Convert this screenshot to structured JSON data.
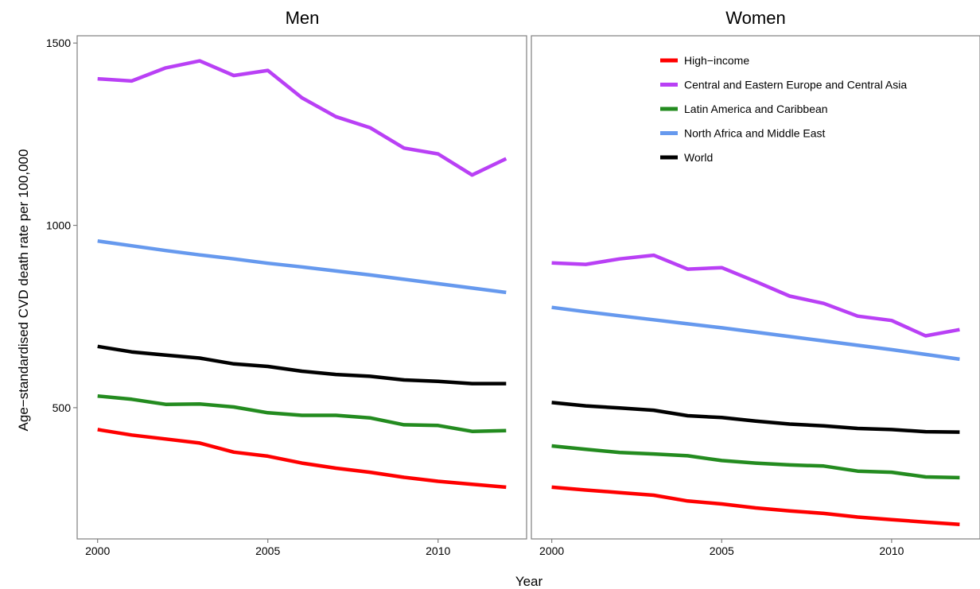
{
  "chart_data": {
    "type": "line",
    "xlabel": "Year",
    "ylabel": "Age−standardised CVD death rate per 100,000",
    "xlim": [
      1999.4,
      2012.6
    ],
    "ylim": [
      140,
      1520
    ],
    "x_ticks": [
      2000,
      2005,
      2010
    ],
    "y_ticks": [
      500,
      1000,
      1500
    ],
    "grid": false,
    "legend_position": "top-right of Women panel",
    "x": [
      2000,
      2001,
      2002,
      2003,
      2004,
      2005,
      2006,
      2007,
      2008,
      2009,
      2010,
      2011,
      2012
    ],
    "panels": [
      {
        "title": "Men",
        "series": [
          {
            "name": "High−income",
            "color": "#ff0000",
            "values": [
              440,
              425,
              414,
              403,
              378,
              367,
              348,
              334,
              323,
              309,
              298,
              290,
              282
            ]
          },
          {
            "name": "Central and Eastern Europe and Central Asia",
            "color": "#b940f5",
            "values": [
              1402,
              1396,
              1432,
              1451,
              1411,
              1425,
              1350,
              1298,
              1268,
              1212,
              1196,
              1138,
              1183
            ]
          },
          {
            "name": "Latin America and Caribbean",
            "color": "#238b1f",
            "values": [
              532,
              523,
              509,
              510,
              502,
              486,
              479,
              479,
              472,
              453,
              451,
              435,
              437
            ]
          },
          {
            "name": "North Africa and Middle East",
            "color": "#6699ee",
            "values": [
              957,
              944,
              931,
              919,
              908,
              896,
              886,
              875,
              864,
              852,
              840,
              828,
              816
            ]
          },
          {
            "name": "World",
            "color": "#000000",
            "values": [
              668,
              653,
              644,
              636,
              620,
              613,
              600,
              591,
              586,
              576,
              572,
              566,
              566
            ]
          }
        ]
      },
      {
        "title": "Women",
        "series": [
          {
            "name": "High−income",
            "color": "#ff0000",
            "values": [
              282,
              274,
              267,
              260,
              244,
              236,
              225,
              217,
              210,
              200,
              193,
              186,
              180
            ]
          },
          {
            "name": "Central and Eastern Europe and Central Asia",
            "color": "#b940f5",
            "values": [
              897,
              893,
              908,
              918,
              880,
              884,
              846,
              806,
              786,
              751,
              739,
              697,
              714
            ]
          },
          {
            "name": "Latin America and Caribbean",
            "color": "#238b1f",
            "values": [
              395,
              386,
              377,
              373,
              368,
              355,
              348,
              343,
              340,
              326,
              323,
              310,
              308
            ]
          },
          {
            "name": "North Africa and Middle East",
            "color": "#6699ee",
            "values": [
              775,
              763,
              752,
              741,
              730,
              719,
              707,
              695,
              683,
              671,
              659,
              646,
              633
            ]
          },
          {
            "name": "World",
            "color": "#000000",
            "values": [
              514,
              505,
              499,
              493,
              478,
              473,
              463,
              455,
              450,
              443,
              440,
              434,
              433
            ]
          }
        ]
      }
    ]
  }
}
